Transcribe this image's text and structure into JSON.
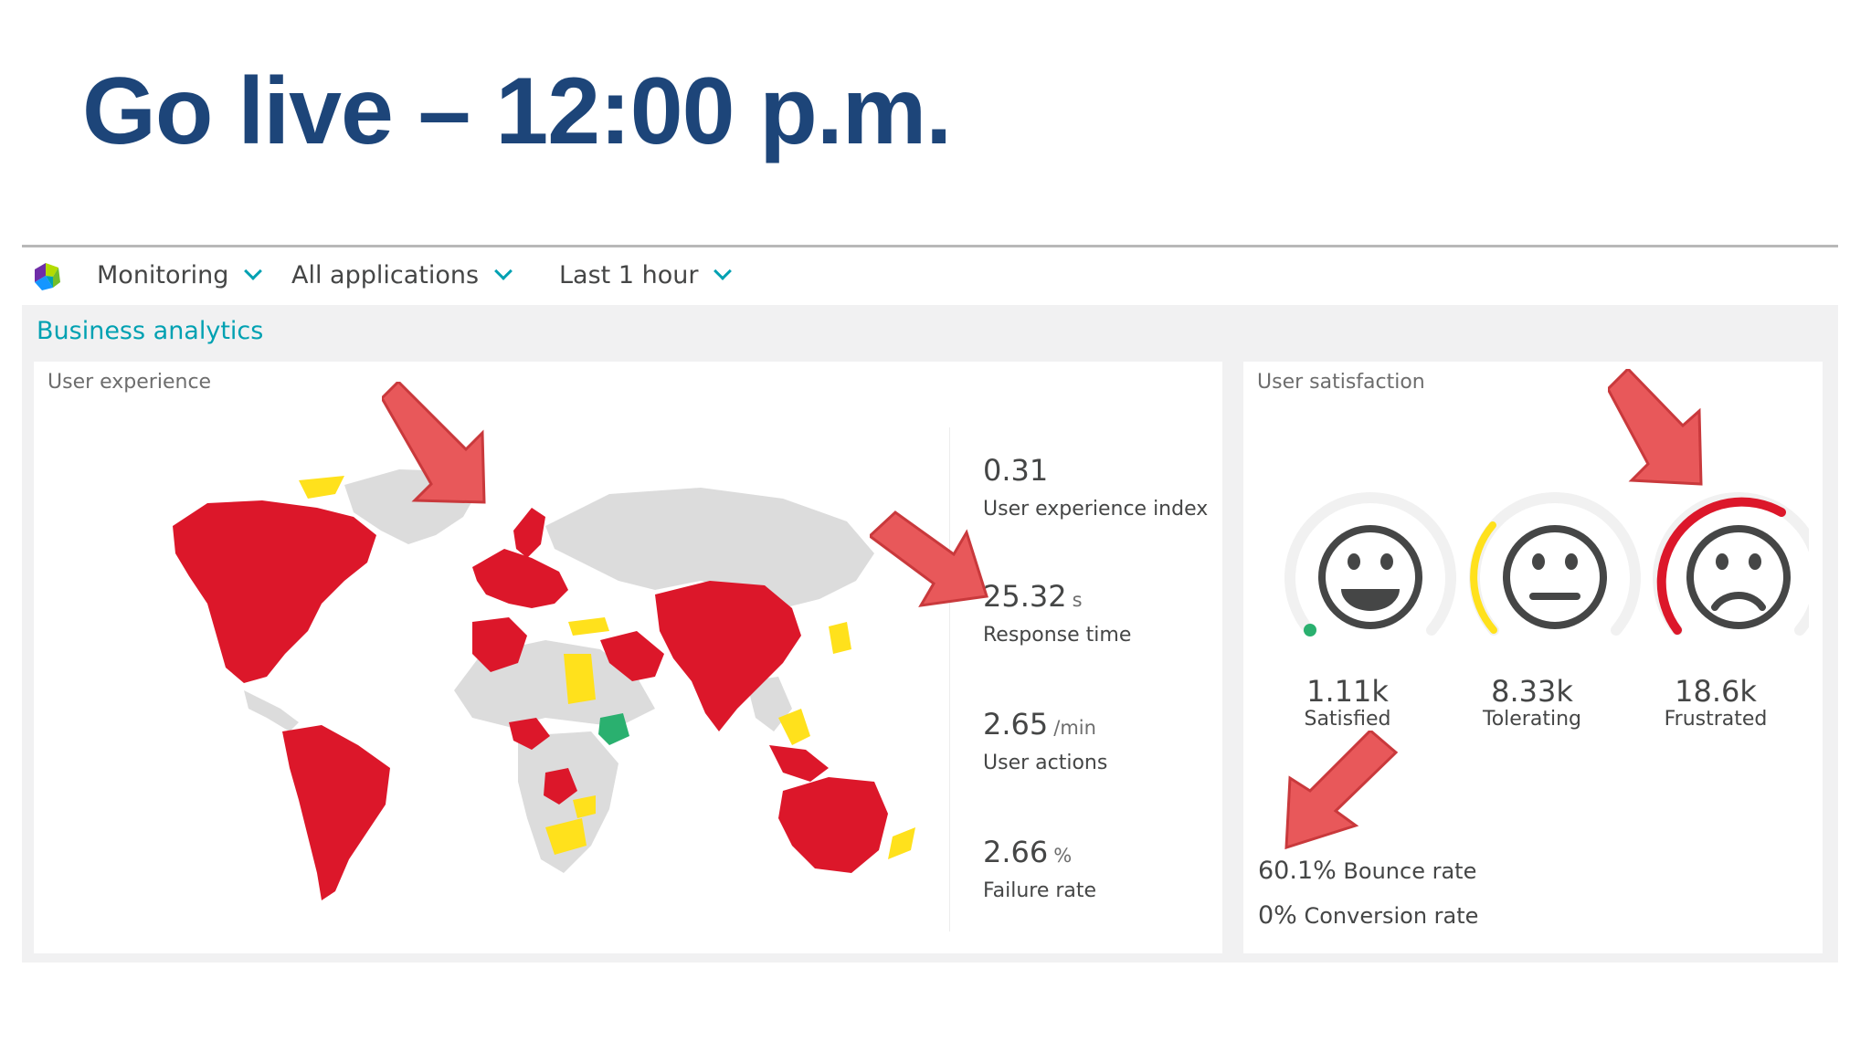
{
  "slide": {
    "title": "Go live – 12:00 p.m."
  },
  "topbar": {
    "monitoring_label": "Monitoring",
    "applications_label": "All applications",
    "timeframe_label": "Last 1 hour"
  },
  "section": {
    "title": "Business analytics"
  },
  "user_experience": {
    "title": "User experience",
    "metrics": [
      {
        "value": "0.31",
        "unit": "",
        "label": "User experience index"
      },
      {
        "value": "25.32",
        "unit": "s",
        "label": "Response time"
      },
      {
        "value": "2.65",
        "unit": "/min",
        "label": "User actions"
      },
      {
        "value": "2.66",
        "unit": "%",
        "label": "Failure rate"
      }
    ]
  },
  "user_satisfaction": {
    "title": "User satisfaction",
    "items": [
      {
        "value": "1.11k",
        "label": "Satisfied",
        "icon": "smiley-happy-icon",
        "color": "#2ab06f"
      },
      {
        "value": "8.33k",
        "label": "Tolerating",
        "icon": "smiley-neutral-icon",
        "color": "#ffe11c"
      },
      {
        "value": "18.6k",
        "label": "Frustrated",
        "icon": "smiley-sad-icon",
        "color": "#dc172a"
      }
    ],
    "bounce": {
      "value": "60.1%",
      "label": "Bounce rate"
    },
    "conversion": {
      "value": "0%",
      "label": "Conversion rate"
    }
  },
  "colors": {
    "title_blue": "#1d4579",
    "accent_teal": "#00a1b2",
    "frustrated_red": "#dc172a",
    "tolerating_yellow": "#ffe11c",
    "satisfied_green": "#2ab06f",
    "map_gray": "#dcdcdc",
    "arrow_red": "#e8585a"
  }
}
